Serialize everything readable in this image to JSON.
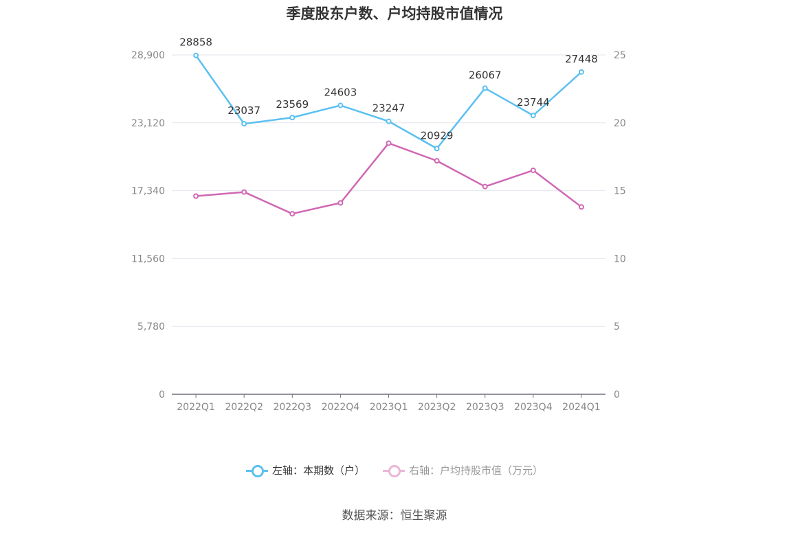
{
  "chart_data": {
    "type": "line",
    "title": "季度股东户数、户均持股市值情况",
    "categories": [
      "2022Q1",
      "2022Q2",
      "2022Q3",
      "2022Q4",
      "2023Q1",
      "2023Q2",
      "2023Q3",
      "2023Q4",
      "2024Q1"
    ],
    "left_axis": {
      "ticks": [
        "0",
        "5,780",
        "11,560",
        "17,340",
        "23,120",
        "28,900"
      ],
      "ylim": [
        0,
        28900
      ]
    },
    "right_axis": {
      "ticks": [
        "0",
        "5",
        "10",
        "15",
        "20",
        "25"
      ],
      "ylim": [
        0,
        25
      ]
    },
    "series": [
      {
        "name": "左轴：本期数（户）",
        "axis": "left",
        "color": "#5bc0f0",
        "values": [
          28858,
          23037,
          23569,
          24603,
          23247,
          20929,
          26067,
          23744,
          27448
        ],
        "labels": [
          "28858",
          "23037",
          "23569",
          "24603",
          "23247",
          "20929",
          "26067",
          "23744",
          "27448"
        ]
      },
      {
        "name": "右轴：户均持股市值（万元）",
        "axis": "right",
        "color": "#d067b4",
        "values": [
          14.6,
          14.9,
          13.3,
          14.1,
          18.5,
          17.2,
          15.3,
          16.5,
          13.8
        ]
      }
    ],
    "grid": true,
    "legend_position": "bottom"
  },
  "source": "数据来源：恒生聚源"
}
